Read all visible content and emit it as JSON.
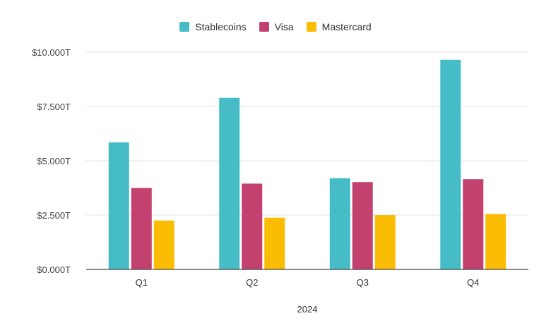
{
  "chart_data": {
    "type": "bar",
    "categories": [
      "Q1",
      "Q2",
      "Q3",
      "Q4"
    ],
    "series": [
      {
        "name": "Stablecoins",
        "color": "#46BDC6",
        "values": [
          5.85,
          7.9,
          4.2,
          9.65
        ]
      },
      {
        "name": "Visa",
        "color": "#C2416E",
        "values": [
          3.75,
          3.95,
          4.02,
          4.15
        ]
      },
      {
        "name": "Mastercard",
        "color": "#FBBC04",
        "values": [
          2.25,
          2.38,
          2.5,
          2.55
        ]
      }
    ],
    "y_ticks": [
      {
        "value": 0,
        "label": "$0.000T"
      },
      {
        "value": 2.5,
        "label": "$2.500T"
      },
      {
        "value": 5,
        "label": "$5.000T"
      },
      {
        "value": 7.5,
        "label": "$7.500T"
      },
      {
        "value": 10,
        "label": "$10.000T"
      }
    ],
    "ylim": [
      0,
      10
    ],
    "xlabel": "2024",
    "ylabel": "",
    "title": "",
    "grid": true,
    "legend_position": "top-center"
  }
}
